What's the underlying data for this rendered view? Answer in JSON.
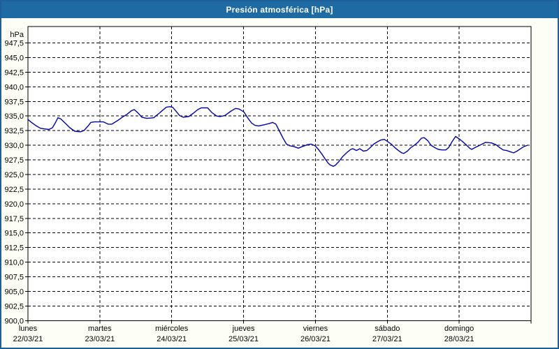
{
  "window": {
    "title": "Presión atmosférica [hPa]"
  },
  "colors": {
    "titlebar": "#1e6aa3",
    "window_border": "#1d5f96",
    "window_background": "#fdfef6",
    "plot_background": "#ffffff",
    "grid": "#000000",
    "axis_text": "#000000",
    "line": "#0000b4"
  },
  "chart_data": {
    "type": "line",
    "title": "Presión atmosférica [hPa]",
    "grid": {
      "style": "dashed",
      "horizontal": true,
      "vertical": true
    },
    "legend": "none",
    "y_axis": {
      "unit_label": "hPa",
      "ylim": [
        900,
        948.8
      ],
      "tick_step": 2.5,
      "ticks": [
        {
          "value": 947.5,
          "label": "947,5"
        },
        {
          "value": 945.0,
          "label": "945,0"
        },
        {
          "value": 942.5,
          "label": "942,5"
        },
        {
          "value": 940.0,
          "label": "940,0"
        },
        {
          "value": 937.5,
          "label": "937,5"
        },
        {
          "value": 935.0,
          "label": "935,0"
        },
        {
          "value": 932.5,
          "label": "932,5"
        },
        {
          "value": 930.0,
          "label": "930,0"
        },
        {
          "value": 927.5,
          "label": "927,5"
        },
        {
          "value": 925.0,
          "label": "925,0"
        },
        {
          "value": 922.5,
          "label": "922,5"
        },
        {
          "value": 920.0,
          "label": "920,0"
        },
        {
          "value": 917.5,
          "label": "917,5"
        },
        {
          "value": 915.0,
          "label": "915,0"
        },
        {
          "value": 912.5,
          "label": "912,5"
        },
        {
          "value": 910.0,
          "label": "910,0"
        },
        {
          "value": 907.5,
          "label": "907,5"
        },
        {
          "value": 905.0,
          "label": "905,0"
        },
        {
          "value": 902.5,
          "label": "902,5"
        },
        {
          "value": 900.0,
          "label": "900,0"
        }
      ]
    },
    "x_axis": {
      "range_hours": [
        0,
        168
      ],
      "hours_per_day": 24,
      "days": [
        {
          "name": "lunes",
          "date": "22/03/21"
        },
        {
          "name": "martes",
          "date": "23/03/21"
        },
        {
          "name": "miércoles",
          "date": "24/03/21"
        },
        {
          "name": "jueves",
          "date": "25/03/21"
        },
        {
          "name": "viernes",
          "date": "26/03/21"
        },
        {
          "name": "sábado",
          "date": "27/03/21"
        },
        {
          "name": "domingo",
          "date": "28/03/21"
        }
      ]
    },
    "series": [
      {
        "name": "presión atmosférica",
        "color": "#0000b4",
        "points_hours_hpa": [
          [
            0,
            934.4
          ],
          [
            1.2,
            933.9
          ],
          [
            2.8,
            933.3
          ],
          [
            4.2,
            932.9
          ],
          [
            5.4,
            932.8
          ],
          [
            7,
            932.7
          ],
          [
            8.2,
            933.0
          ],
          [
            9.3,
            934.0
          ],
          [
            10,
            934.7
          ],
          [
            11,
            934.5
          ],
          [
            12.4,
            933.8
          ],
          [
            14,
            933.0
          ],
          [
            15.6,
            932.4
          ],
          [
            17.5,
            932.3
          ],
          [
            18.7,
            932.5
          ],
          [
            20.1,
            933.3
          ],
          [
            21,
            933.9
          ],
          [
            22.2,
            934.0
          ],
          [
            25.2,
            934.0
          ],
          [
            26.8,
            933.6
          ],
          [
            28,
            933.6
          ],
          [
            29.9,
            934.2
          ],
          [
            31.5,
            934.8
          ],
          [
            33.1,
            935.3
          ],
          [
            34.5,
            935.9
          ],
          [
            35.5,
            936.1
          ],
          [
            36.6,
            935.6
          ],
          [
            38,
            934.8
          ],
          [
            39.7,
            934.6
          ],
          [
            42,
            934.7
          ],
          [
            43.9,
            935.5
          ],
          [
            45,
            936.0
          ],
          [
            46.2,
            936.5
          ],
          [
            47.4,
            936.6
          ],
          [
            48.3,
            936.5
          ],
          [
            49.5,
            935.8
          ],
          [
            50.6,
            935.1
          ],
          [
            51.8,
            934.8
          ],
          [
            53.7,
            934.9
          ],
          [
            55.3,
            935.5
          ],
          [
            56.7,
            936.1
          ],
          [
            57.9,
            936.4
          ],
          [
            60,
            936.4
          ],
          [
            61.4,
            935.6
          ],
          [
            63,
            935.0
          ],
          [
            64.2,
            934.9
          ],
          [
            65.8,
            935.1
          ],
          [
            67.7,
            935.8
          ],
          [
            69.3,
            936.3
          ],
          [
            70.5,
            936.2
          ],
          [
            72.1,
            935.7
          ],
          [
            73.5,
            934.6
          ],
          [
            74.7,
            933.8
          ],
          [
            75.8,
            933.4
          ],
          [
            77,
            933.3
          ],
          [
            78.9,
            933.5
          ],
          [
            80.5,
            933.7
          ],
          [
            81.7,
            933.9
          ],
          [
            82.8,
            933.6
          ],
          [
            84,
            932.4
          ],
          [
            85.2,
            931.2
          ],
          [
            86.3,
            930.2
          ],
          [
            87.5,
            929.9
          ],
          [
            88.7,
            929.8
          ],
          [
            90.3,
            929.5
          ],
          [
            91.7,
            929.8
          ],
          [
            93.3,
            930.1
          ],
          [
            94.5,
            930.2
          ],
          [
            95.9,
            929.9
          ],
          [
            96.8,
            929.4
          ],
          [
            98,
            928.6
          ],
          [
            99.2,
            927.7
          ],
          [
            100.3,
            926.9
          ],
          [
            101,
            926.6
          ],
          [
            102,
            926.4
          ],
          [
            102.7,
            926.6
          ],
          [
            103.8,
            927.2
          ],
          [
            105,
            928.0
          ],
          [
            106.6,
            928.8
          ],
          [
            107.8,
            929.3
          ],
          [
            108.5,
            929.4
          ],
          [
            109.7,
            929.1
          ],
          [
            110.8,
            929.4
          ],
          [
            112,
            929.0
          ],
          [
            113.2,
            929.1
          ],
          [
            114.3,
            929.6
          ],
          [
            115.5,
            930.2
          ],
          [
            116.7,
            930.6
          ],
          [
            117.8,
            930.9
          ],
          [
            119,
            931.0
          ],
          [
            119.9,
            930.7
          ],
          [
            121.3,
            930.2
          ],
          [
            122.5,
            929.6
          ],
          [
            123.7,
            929.1
          ],
          [
            124.8,
            928.7
          ],
          [
            125.5,
            928.6
          ],
          [
            126.7,
            929.0
          ],
          [
            127.9,
            929.6
          ],
          [
            129,
            930.0
          ],
          [
            130.2,
            930.5
          ],
          [
            131.4,
            931.2
          ],
          [
            132.3,
            931.3
          ],
          [
            133.5,
            930.8
          ],
          [
            134.6,
            930.0
          ],
          [
            135.8,
            929.6
          ],
          [
            137,
            929.3
          ],
          [
            138.4,
            929.2
          ],
          [
            139.5,
            929.2
          ],
          [
            140.5,
            929.6
          ],
          [
            141.6,
            930.6
          ],
          [
            142.8,
            931.5
          ],
          [
            144,
            931.1
          ],
          [
            145.2,
            930.6
          ],
          [
            146.3,
            930.1
          ],
          [
            147.5,
            929.5
          ],
          [
            148.2,
            929.3
          ],
          [
            149.3,
            929.6
          ],
          [
            150.5,
            929.9
          ],
          [
            151.7,
            930.2
          ],
          [
            152.8,
            930.5
          ],
          [
            154.7,
            930.4
          ],
          [
            156.3,
            930.1
          ],
          [
            157.5,
            929.6
          ],
          [
            158.7,
            929.2
          ],
          [
            159.8,
            929.1
          ],
          [
            161,
            928.9
          ],
          [
            162.2,
            928.7
          ],
          [
            163.3,
            929.0
          ],
          [
            164.5,
            929.4
          ],
          [
            165.7,
            929.8
          ],
          [
            166.8,
            930.0
          ]
        ]
      }
    ]
  }
}
